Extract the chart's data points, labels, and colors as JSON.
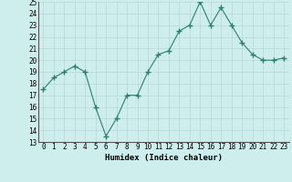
{
  "x": [
    0,
    1,
    2,
    3,
    4,
    5,
    6,
    7,
    8,
    9,
    10,
    11,
    12,
    13,
    14,
    15,
    16,
    17,
    18,
    19,
    20,
    21,
    22,
    23
  ],
  "y": [
    17.5,
    18.5,
    19.0,
    19.5,
    19.0,
    16.0,
    13.5,
    15.0,
    17.0,
    17.0,
    19.0,
    20.5,
    20.8,
    22.5,
    23.0,
    25.0,
    23.0,
    24.5,
    23.0,
    21.5,
    20.5,
    20.0,
    20.0,
    20.2
  ],
  "xlabel": "Humidex (Indice chaleur)",
  "ylim": [
    13,
    25
  ],
  "xlim": [
    -0.5,
    23.5
  ],
  "yticks": [
    13,
    14,
    15,
    16,
    17,
    18,
    19,
    20,
    21,
    22,
    23,
    24,
    25
  ],
  "xticks": [
    0,
    1,
    2,
    3,
    4,
    5,
    6,
    7,
    8,
    9,
    10,
    11,
    12,
    13,
    14,
    15,
    16,
    17,
    18,
    19,
    20,
    21,
    22,
    23
  ],
  "line_color": "#2d7f6e",
  "marker": "+",
  "marker_size": 4,
  "bg_color": "#ceeeed",
  "grid_color": "#b8d8d6",
  "tick_fontsize": 5.5,
  "xlabel_fontsize": 6.5
}
